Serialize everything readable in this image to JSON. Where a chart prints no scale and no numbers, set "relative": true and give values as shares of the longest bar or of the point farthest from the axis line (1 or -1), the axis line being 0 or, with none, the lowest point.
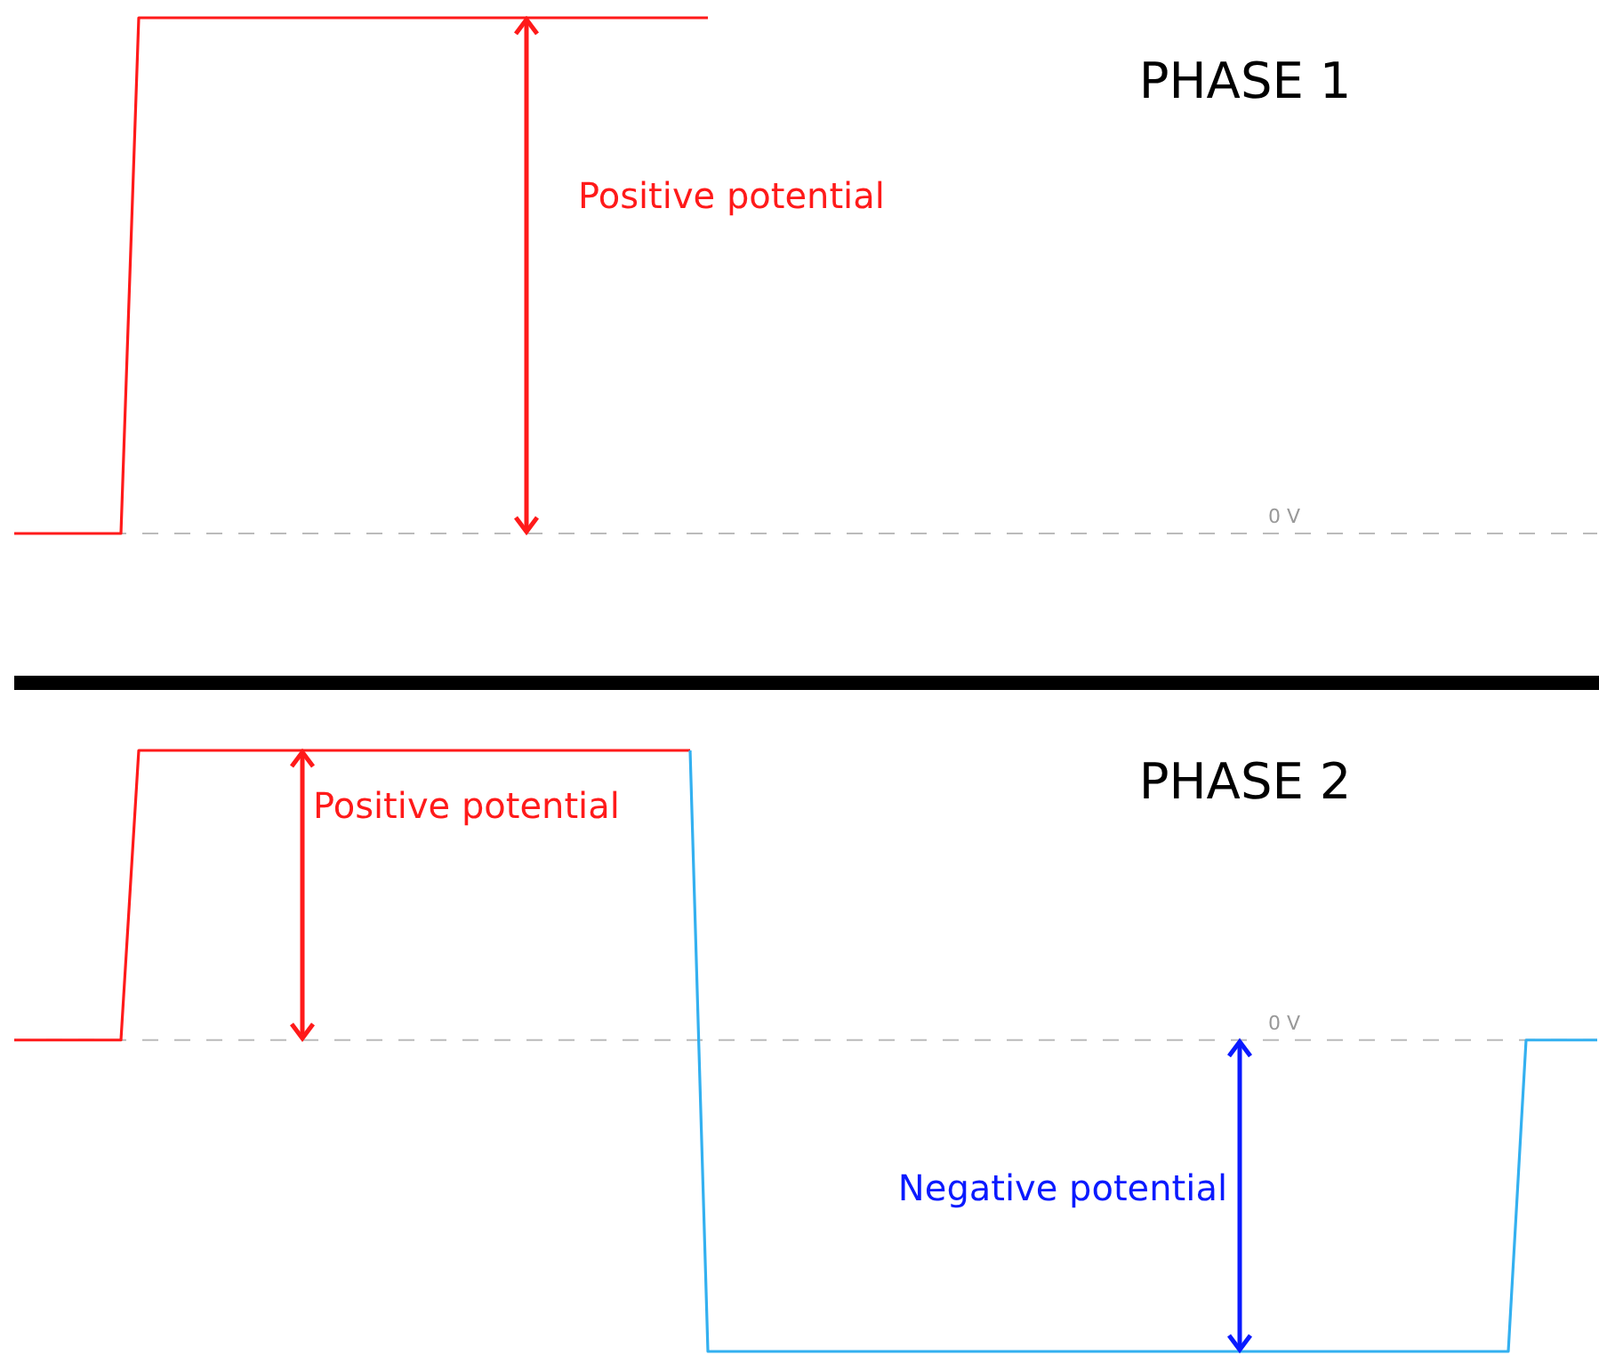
{
  "chart_data": [
    {
      "type": "line",
      "title": "PHASE 1",
      "relative": true,
      "marker": "none",
      "line_style": "solid",
      "categories": [
        null,
        null,
        null,
        null,
        null,
        null,
        null,
        null,
        null,
        null,
        null,
        null,
        null,
        null,
        null,
        null,
        null,
        null,
        null,
        null,
        null,
        null,
        null,
        null,
        null,
        null,
        null,
        null,
        null,
        null,
        null,
        null,
        null,
        null,
        null,
        null,
        null,
        null,
        null,
        null,
        null,
        null,
        null,
        null,
        null,
        null,
        null,
        null,
        null,
        null,
        null,
        null,
        null,
        null,
        null,
        null,
        null,
        null,
        null,
        null,
        null,
        null,
        null,
        null,
        null,
        null,
        null,
        null,
        null,
        null,
        null,
        null,
        null,
        null,
        null,
        null,
        null,
        null,
        null,
        null,
        null,
        null,
        null,
        null,
        null,
        null,
        null,
        null,
        null,
        null
      ],
      "series": [
        {
          "color": "#ff1a1a",
          "values": [
            0,
            0,
            0,
            0,
            0,
            0,
            0,
            1,
            1,
            1,
            1,
            1,
            1,
            1,
            1,
            1,
            1,
            1,
            1,
            1,
            1,
            1,
            1,
            1,
            1,
            1,
            1,
            1,
            1,
            1,
            1,
            1,
            1,
            1,
            1,
            1,
            1,
            1,
            1,
            1,
            null,
            null,
            null,
            null,
            null,
            null,
            null,
            null,
            null,
            null,
            null,
            null,
            null,
            null,
            null,
            null,
            null,
            null,
            null,
            null,
            null,
            null,
            null,
            null,
            null,
            null,
            null,
            null,
            null,
            null,
            null,
            null,
            null,
            null,
            null,
            null,
            null,
            null,
            null,
            null,
            null,
            null,
            null,
            null,
            null,
            null,
            null,
            null,
            null,
            null
          ]
        }
      ],
      "ref_lines": [
        {
          "axis": "y",
          "value": 0,
          "label": "0 V",
          "color": "#bbbbbb",
          "line_style": "dashed"
        }
      ],
      "annotations": [
        "Positive potential"
      ]
    },
    {
      "type": "line",
      "title": "PHASE 2",
      "relative": true,
      "marker": "none",
      "line_style": "solid",
      "categories": [
        null,
        null,
        null,
        null,
        null,
        null,
        null,
        null,
        null,
        null,
        null,
        null,
        null,
        null,
        null,
        null,
        null,
        null,
        null,
        null,
        null,
        null,
        null,
        null,
        null,
        null,
        null,
        null,
        null,
        null,
        null,
        null,
        null,
        null,
        null,
        null,
        null,
        null,
        null,
        null,
        null,
        null,
        null,
        null,
        null,
        null,
        null,
        null,
        null,
        null,
        null,
        null,
        null,
        null,
        null,
        null,
        null,
        null,
        null,
        null,
        null,
        null,
        null,
        null,
        null,
        null,
        null,
        null,
        null,
        null,
        null,
        null,
        null,
        null,
        null,
        null,
        null,
        null,
        null,
        null,
        null,
        null,
        null,
        null,
        null,
        null,
        null,
        null,
        null,
        null
      ],
      "series": [
        {
          "color": "#ff1a1a",
          "values": [
            0,
            0,
            0,
            0,
            0,
            0,
            0,
            0.93,
            0.93,
            0.93,
            0.93,
            0.93,
            0.93,
            0.93,
            0.93,
            0.93,
            0.93,
            0.93,
            0.93,
            0.93,
            0.93,
            0.93,
            0.93,
            0.93,
            0.93,
            0.93,
            0.93,
            0.93,
            0.93,
            0.93,
            0.93,
            0.93,
            0.93,
            0.93,
            0.93,
            0.93,
            0.93,
            0.93,
            0.93,
            null,
            null,
            null,
            null,
            null,
            null,
            null,
            null,
            null,
            null,
            null,
            null,
            null,
            null,
            null,
            null,
            null,
            null,
            null,
            null,
            null,
            null,
            null,
            null,
            null,
            null,
            null,
            null,
            null,
            null,
            null,
            null,
            null,
            null,
            null,
            null,
            null,
            null,
            null,
            null,
            null,
            null,
            null,
            null,
            null,
            null,
            null,
            null,
            null,
            null,
            null
          ]
        },
        {
          "color": "#33b0f0",
          "values": [
            null,
            null,
            null,
            null,
            null,
            null,
            null,
            null,
            null,
            null,
            null,
            null,
            null,
            null,
            null,
            null,
            null,
            null,
            null,
            null,
            null,
            null,
            null,
            null,
            null,
            null,
            null,
            null,
            null,
            null,
            null,
            null,
            null,
            null,
            null,
            null,
            null,
            null,
            0.93,
            -1,
            -1,
            -1,
            -1,
            -1,
            -1,
            -1,
            -1,
            -1,
            -1,
            -1,
            -1,
            -1,
            -1,
            -1,
            -1,
            -1,
            -1,
            -1,
            -1,
            -1,
            -1,
            -1,
            -1,
            -1,
            -1,
            -1,
            -1,
            -1,
            -1,
            -1,
            -1,
            -1,
            -1,
            -1,
            -1,
            -1,
            -1,
            -1,
            -1,
            -1,
            -1,
            -1,
            -1,
            -1,
            -1,
            0,
            0,
            0,
            0,
            0
          ]
        }
      ],
      "ref_lines": [
        {
          "axis": "y",
          "value": 0,
          "label": "0 V",
          "color": "#bbbbbb",
          "line_style": "dashed"
        }
      ],
      "annotations": [
        "Positive potential",
        "Negative potential"
      ]
    }
  ]
}
